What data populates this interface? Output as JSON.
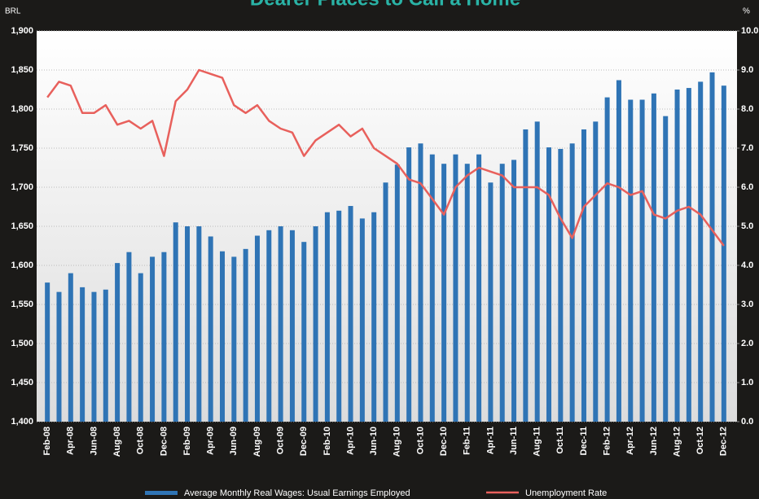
{
  "chart_data": {
    "type": "bar_line",
    "title": "Dearer Places to Call a Home",
    "y_axis_label": "BRL",
    "y2_axis_label": "%",
    "categories": [
      "Feb-08",
      null,
      "Apr-08",
      null,
      "Jun-08",
      null,
      "Aug-08",
      null,
      "Oct-08",
      null,
      "Dec-08",
      null,
      "Feb-09",
      null,
      "Apr-09",
      null,
      "Jun-09",
      null,
      "Aug-09",
      null,
      "Oct-09",
      null,
      "Dec-09",
      null,
      "Feb-10",
      null,
      "Apr-10",
      null,
      "Jun-10",
      null,
      "Aug-10",
      null,
      "Oct-10",
      null,
      "Dec-10",
      null,
      "Feb-11",
      null,
      "Apr-11",
      null,
      "Jun-11",
      null,
      "Aug-11",
      null,
      "Oct-11",
      null,
      "Dec-11",
      null,
      "Feb-12",
      null,
      "Apr-12",
      null,
      "Jun-12",
      null,
      "Aug-12",
      null,
      "Oct-12",
      null,
      "Dec-12"
    ],
    "series": [
      {
        "name": "Average Monthly Real Wages: Usual Earnings Employed",
        "color": "#2f74b5",
        "kind": "bar",
        "values": [
          1578,
          1566,
          1590,
          1572,
          1566,
          1569,
          1603,
          1617,
          1590,
          1611,
          1617,
          1655,
          1650,
          1650,
          1637,
          1618,
          1611,
          1621,
          1638,
          1645,
          1650,
          1645,
          1630,
          1650,
          1668,
          1670,
          1676,
          1660,
          1668,
          1706,
          1729,
          1751,
          1756,
          1742,
          1730,
          1742,
          1730,
          1742,
          1706,
          1730,
          1735,
          1774,
          1784,
          1751,
          1749,
          1756,
          1774,
          1784,
          1815,
          1837,
          1812,
          1812,
          1820,
          1791,
          1825,
          1827,
          1835,
          1847,
          1830
        ]
      },
      {
        "name": "Unemployment Rate",
        "color": "#e8605c",
        "kind": "line",
        "axis": "y2",
        "values": [
          8.3,
          8.7,
          8.6,
          7.9,
          7.9,
          8.1,
          7.6,
          7.7,
          7.5,
          7.7,
          6.8,
          8.2,
          8.5,
          9.0,
          8.9,
          8.8,
          8.1,
          7.9,
          8.1,
          7.7,
          7.5,
          7.4,
          6.8,
          7.2,
          7.4,
          7.6,
          7.3,
          7.5,
          7.0,
          6.8,
          6.6,
          6.2,
          6.1,
          5.7,
          5.3,
          6.0,
          6.3,
          6.5,
          6.4,
          6.3,
          6.0,
          6.0,
          6.0,
          5.8,
          5.2,
          4.7,
          5.5,
          5.8,
          6.1,
          6.0,
          5.8,
          5.9,
          5.3,
          5.2,
          5.4,
          5.5,
          5.3,
          4.9,
          4.5
        ]
      }
    ],
    "ylim": [
      1400,
      1900
    ],
    "yticks": [
      {
        "value": 1400,
        "label": "1,400"
      },
      {
        "value": 1450,
        "label": "1,450"
      },
      {
        "value": 1500,
        "label": "1,500"
      },
      {
        "value": 1550,
        "label": "1,550"
      },
      {
        "value": 1600,
        "label": "1,600"
      },
      {
        "value": 1650,
        "label": "1,650"
      },
      {
        "value": 1700,
        "label": "1,700"
      },
      {
        "value": 1750,
        "label": "1,750"
      },
      {
        "value": 1800,
        "label": "1,800"
      },
      {
        "value": 1850,
        "label": "1,850"
      },
      {
        "value": 1900,
        "label": "1,900"
      }
    ],
    "y2lim": [
      0,
      10
    ],
    "y2ticks": [
      {
        "value": 0,
        "label": "0.0"
      },
      {
        "value": 1,
        "label": "1.0"
      },
      {
        "value": 2,
        "label": "2.0"
      },
      {
        "value": 3,
        "label": "3.0"
      },
      {
        "value": 4,
        "label": "4.0"
      },
      {
        "value": 5,
        "label": "5.0"
      },
      {
        "value": 6,
        "label": "6.0"
      },
      {
        "value": 7,
        "label": "7.0"
      },
      {
        "value": 8,
        "label": "8.0"
      },
      {
        "value": 9,
        "label": "9.0"
      },
      {
        "value": 10,
        "label": "10.0"
      }
    ],
    "grid": true
  }
}
